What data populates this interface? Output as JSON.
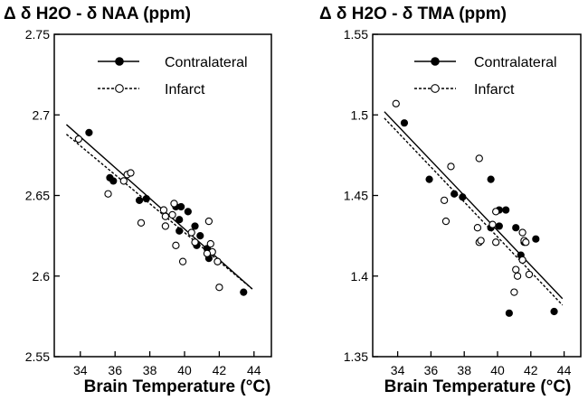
{
  "chart_data": [
    {
      "type": "scatter",
      "title": "Δ δ H2O - δ NAA (ppm)",
      "xlabel": "Brain Temperature (°C)",
      "ylabel": "",
      "xlim": [
        32.5,
        45
      ],
      "ylim": [
        2.55,
        2.75
      ],
      "x_ticks": [
        "34",
        "36",
        "38",
        "40",
        "42",
        "44"
      ],
      "y_ticks": [
        "2.55",
        "2.6",
        "2.65",
        "2.7",
        "2.75"
      ],
      "legend_position": "top-right",
      "grid": false,
      "series": [
        {
          "name": "Contralateral",
          "marker": "filled-circle",
          "line_style": "solid",
          "x": [
            34.5,
            35.7,
            35.9,
            37.4,
            37.8,
            39.5,
            39.8,
            40.2,
            39.7,
            39.7,
            40.6,
            40.7,
            41.3,
            41.4,
            41.9,
            43.4,
            40.9
          ],
          "y": [
            2.689,
            2.661,
            2.659,
            2.647,
            2.648,
            2.643,
            2.643,
            2.64,
            2.635,
            2.628,
            2.631,
            2.619,
            2.617,
            2.611,
            2.609,
            2.59,
            2.625
          ],
          "fit": {
            "x": [
              33.2,
              43.9
            ],
            "y": [
              2.694,
              2.592
            ]
          }
        },
        {
          "name": "Infarct",
          "marker": "open-circle",
          "line_style": "dashed",
          "x": [
            33.9,
            35.6,
            36.5,
            36.7,
            36.9,
            37.5,
            38.8,
            38.9,
            39.3,
            39.4,
            39.5,
            39.9,
            40.4,
            40.6,
            41.4,
            41.5,
            41.6,
            41.9,
            42.0,
            41.3,
            38.9
          ],
          "y": [
            2.685,
            2.651,
            2.659,
            2.663,
            2.664,
            2.633,
            2.641,
            2.631,
            2.638,
            2.645,
            2.619,
            2.609,
            2.627,
            2.621,
            2.634,
            2.62,
            2.615,
            2.609,
            2.593,
            2.614,
            2.637
          ],
          "fit": {
            "x": [
              33.2,
              43.9
            ],
            "y": [
              2.688,
              2.592
            ]
          }
        }
      ]
    },
    {
      "type": "scatter",
      "title": "Δ δ H2O - δ TMA (ppm)",
      "xlabel": "Brain Temperature (°C)",
      "ylabel": "",
      "xlim": [
        32.5,
        45
      ],
      "ylim": [
        1.35,
        1.55
      ],
      "x_ticks": [
        "34",
        "36",
        "38",
        "40",
        "42",
        "44"
      ],
      "y_ticks": [
        "1.35",
        "1.4",
        "1.45",
        "1.5",
        "1.55"
      ],
      "legend_position": "top-right",
      "grid": false,
      "series": [
        {
          "name": "Contralateral",
          "marker": "filled-circle",
          "line_style": "solid",
          "x": [
            34.4,
            35.9,
            37.4,
            37.9,
            39.6,
            40.1,
            40.5,
            39.6,
            40.1,
            41.1,
            41.4,
            41.6,
            42.3,
            40.7,
            43.4
          ],
          "y": [
            1.495,
            1.46,
            1.451,
            1.449,
            1.46,
            1.441,
            1.441,
            1.43,
            1.431,
            1.43,
            1.413,
            1.421,
            1.423,
            1.377,
            1.378
          ],
          "fit": {
            "x": [
              33.2,
              43.9
            ],
            "y": [
              1.502,
              1.386
            ]
          }
        },
        {
          "name": "Infarct",
          "marker": "open-circle",
          "line_style": "dashed",
          "x": [
            33.9,
            36.9,
            37.2,
            36.8,
            38.9,
            38.8,
            39.9,
            39.7,
            38.9,
            39.0,
            39.9,
            41.1,
            41.5,
            41.6,
            41.5,
            41.7,
            41.9,
            41.2,
            41.0
          ],
          "y": [
            1.507,
            1.434,
            1.468,
            1.447,
            1.473,
            1.43,
            1.44,
            1.432,
            1.421,
            1.422,
            1.421,
            1.404,
            1.427,
            1.422,
            1.41,
            1.421,
            1.401,
            1.4,
            1.39
          ],
          "fit": {
            "x": [
              33.2,
              43.9
            ],
            "y": [
              1.498,
              1.382
            ]
          }
        }
      ]
    }
  ]
}
